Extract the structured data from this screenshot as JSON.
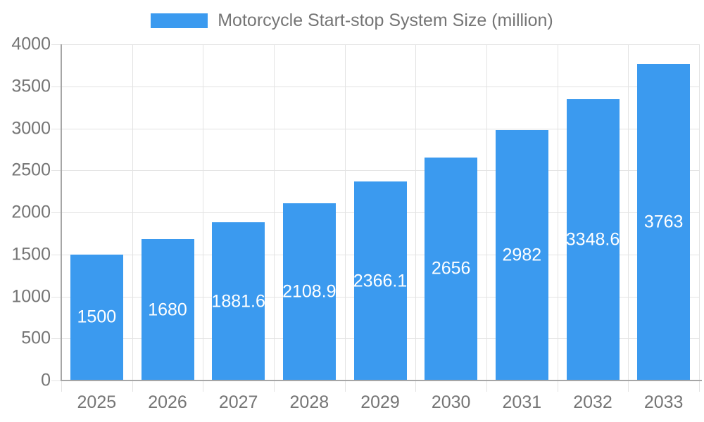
{
  "legend": {
    "label": "Motorcycle Start-stop System Size (million)"
  },
  "chart_data": {
    "type": "bar",
    "title": "Motorcycle Start-stop System Size (million)",
    "categories": [
      "2025",
      "2026",
      "2027",
      "2028",
      "2029",
      "2030",
      "2031",
      "2032",
      "2033"
    ],
    "values": [
      1500,
      1680,
      1881.6,
      2108.9,
      2366.1,
      2656,
      2982,
      3348.6,
      3763
    ],
    "xlabel": "",
    "ylabel": "",
    "ylim": [
      0,
      4000
    ],
    "ytick_step": 500,
    "ytick_labels": [
      "0",
      "500",
      "1000",
      "1500",
      "2000",
      "2500",
      "3000",
      "3500",
      "4000"
    ],
    "grid": true,
    "legend_position": "top",
    "bar_labels_position": "inside-center"
  },
  "colors": {
    "bar": "#3B9AEF",
    "bar_label_text": "#FFFFFF",
    "axis_text": "#757575",
    "axis_line": "#A6A6A6",
    "gridline": "#E3E3E3",
    "background": "#FFFFFF"
  }
}
